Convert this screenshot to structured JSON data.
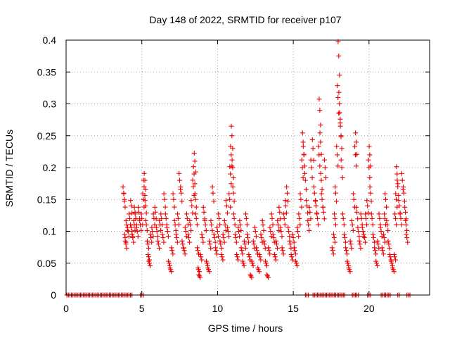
{
  "chart_data": {
    "type": "scatter",
    "title": "Day 148 of 2022, SRMTID for receiver p107",
    "xlabel": "GPS time / hours",
    "ylabel": "SRMTID / TECUs",
    "xlim": [
      0,
      24
    ],
    "ylim": [
      0,
      0.4
    ],
    "x_ticks": [
      0,
      5,
      10,
      15,
      20
    ],
    "y_ticks": [
      0,
      0.05,
      0.1,
      0.15,
      0.2,
      0.25,
      0.3,
      0.35,
      0.4
    ],
    "x_tick_labels": [
      "0",
      "5",
      "10",
      "15",
      "20"
    ],
    "y_tick_labels": [
      "0",
      "0.05",
      "0.1",
      "0.15",
      "0.2",
      "0.25",
      "0.3",
      "0.35",
      "0.4"
    ],
    "grid": true,
    "marker": "+",
    "color": "#ee0000",
    "zero_value_ranges": [
      [
        0.05,
        4.4
      ],
      [
        4.9,
        5.1
      ],
      [
        15.8,
        16.0
      ],
      [
        16.3,
        18.4
      ],
      [
        18.9,
        19.3
      ],
      [
        19.9,
        20.1
      ],
      [
        20.8,
        21.4
      ],
      [
        21.9,
        22.0
      ],
      [
        22.5,
        22.7
      ]
    ],
    "series": [
      {
        "name": "SRMTID",
        "values": [
          [
            3.8,
            0.16
          ],
          [
            3.85,
            0.15
          ],
          [
            3.9,
            0.09
          ],
          [
            3.95,
            0.08
          ],
          [
            4.0,
            0.11
          ],
          [
            4.1,
            0.1
          ],
          [
            4.2,
            0.12
          ],
          [
            4.3,
            0.14
          ],
          [
            4.35,
            0.1
          ],
          [
            4.4,
            0.09
          ],
          [
            4.5,
            0.11
          ],
          [
            4.55,
            0.13
          ],
          [
            4.6,
            0.12
          ],
          [
            4.7,
            0.1
          ],
          [
            4.8,
            0.13
          ],
          [
            4.9,
            0.11
          ],
          [
            5.0,
            0.12
          ],
          [
            5.1,
            0.15
          ],
          [
            5.15,
            0.17
          ],
          [
            5.2,
            0.18
          ],
          [
            5.25,
            0.14
          ],
          [
            5.3,
            0.11
          ],
          [
            5.4,
            0.08
          ],
          [
            5.45,
            0.06
          ],
          [
            5.5,
            0.05
          ],
          [
            5.6,
            0.09
          ],
          [
            5.7,
            0.1
          ],
          [
            5.8,
            0.12
          ],
          [
            5.9,
            0.13
          ],
          [
            6.0,
            0.1
          ],
          [
            6.1,
            0.08
          ],
          [
            6.2,
            0.11
          ],
          [
            6.3,
            0.12
          ],
          [
            6.4,
            0.09
          ],
          [
            6.5,
            0.15
          ],
          [
            6.6,
            0.12
          ],
          [
            6.7,
            0.1
          ],
          [
            6.8,
            0.05
          ],
          [
            6.9,
            0.04
          ],
          [
            7.0,
            0.07
          ],
          [
            7.1,
            0.15
          ],
          [
            7.2,
            0.11
          ],
          [
            7.3,
            0.09
          ],
          [
            7.4,
            0.12
          ],
          [
            7.5,
            0.18
          ],
          [
            7.6,
            0.16
          ],
          [
            7.7,
            0.08
          ],
          [
            7.8,
            0.07
          ],
          [
            7.9,
            0.1
          ],
          [
            8.0,
            0.12
          ],
          [
            8.1,
            0.09
          ],
          [
            8.2,
            0.11
          ],
          [
            8.3,
            0.14
          ],
          [
            8.4,
            0.17
          ],
          [
            8.45,
            0.19
          ],
          [
            8.5,
            0.21
          ],
          [
            8.55,
            0.15
          ],
          [
            8.6,
            0.12
          ],
          [
            8.7,
            0.07
          ],
          [
            8.75,
            0.04
          ],
          [
            8.8,
            0.03
          ],
          [
            8.9,
            0.06
          ],
          [
            9.0,
            0.09
          ],
          [
            9.1,
            0.13
          ],
          [
            9.2,
            0.11
          ],
          [
            9.3,
            0.05
          ],
          [
            9.4,
            0.04
          ],
          [
            9.5,
            0.08
          ],
          [
            9.6,
            0.11
          ],
          [
            9.7,
            0.16
          ],
          [
            9.8,
            0.09
          ],
          [
            9.9,
            0.07
          ],
          [
            10.0,
            0.1
          ],
          [
            10.1,
            0.12
          ],
          [
            10.2,
            0.08
          ],
          [
            10.3,
            0.06
          ],
          [
            10.4,
            0.09
          ],
          [
            10.5,
            0.11
          ],
          [
            10.6,
            0.14
          ],
          [
            10.7,
            0.1
          ],
          [
            10.8,
            0.15
          ],
          [
            10.85,
            0.19
          ],
          [
            10.9,
            0.22
          ],
          [
            10.95,
            0.25
          ],
          [
            11.0,
            0.2
          ],
          [
            11.05,
            0.16
          ],
          [
            11.1,
            0.12
          ],
          [
            11.2,
            0.09
          ],
          [
            11.3,
            0.06
          ],
          [
            11.4,
            0.1
          ],
          [
            11.5,
            0.11
          ],
          [
            11.6,
            0.07
          ],
          [
            11.7,
            0.05
          ],
          [
            11.8,
            0.08
          ],
          [
            11.9,
            0.12
          ],
          [
            12.0,
            0.09
          ],
          [
            12.1,
            0.06
          ],
          [
            12.2,
            0.03
          ],
          [
            12.3,
            0.05
          ],
          [
            12.4,
            0.08
          ],
          [
            12.5,
            0.1
          ],
          [
            12.6,
            0.07
          ],
          [
            12.7,
            0.04
          ],
          [
            12.8,
            0.06
          ],
          [
            12.9,
            0.09
          ],
          [
            13.0,
            0.11
          ],
          [
            13.1,
            0.08
          ],
          [
            13.2,
            0.05
          ],
          [
            13.3,
            0.03
          ],
          [
            13.4,
            0.07
          ],
          [
            13.5,
            0.1
          ],
          [
            13.6,
            0.12
          ],
          [
            13.7,
            0.09
          ],
          [
            13.8,
            0.06
          ],
          [
            13.9,
            0.08
          ],
          [
            14.0,
            0.11
          ],
          [
            14.1,
            0.13
          ],
          [
            14.2,
            0.1
          ],
          [
            14.3,
            0.07
          ],
          [
            14.4,
            0.12
          ],
          [
            14.5,
            0.14
          ],
          [
            14.6,
            0.16
          ],
          [
            14.7,
            0.1
          ],
          [
            14.8,
            0.08
          ],
          [
            14.9,
            0.06
          ],
          [
            15.0,
            0.09
          ],
          [
            15.1,
            0.07
          ],
          [
            15.2,
            0.05
          ],
          [
            15.3,
            0.1
          ],
          [
            15.4,
            0.12
          ],
          [
            15.5,
            0.15
          ],
          [
            15.6,
            0.2
          ],
          [
            15.65,
            0.24
          ],
          [
            15.7,
            0.22
          ],
          [
            15.8,
            0.18
          ],
          [
            15.9,
            0.14
          ],
          [
            16.0,
            0.11
          ],
          [
            16.1,
            0.13
          ],
          [
            16.2,
            0.2
          ],
          [
            16.3,
            0.23
          ],
          [
            16.4,
            0.16
          ],
          [
            16.5,
            0.14
          ],
          [
            16.6,
            0.12
          ],
          [
            16.7,
            0.22
          ],
          [
            16.75,
            0.29
          ],
          [
            16.8,
            0.24
          ],
          [
            16.85,
            0.18
          ],
          [
            16.9,
            0.15
          ],
          [
            17.0,
            0.13
          ],
          [
            17.1,
            0.2
          ],
          [
            17.6,
            0.07
          ],
          [
            17.7,
            0.09
          ],
          [
            17.75,
            0.12
          ],
          [
            17.8,
            0.16
          ],
          [
            17.9,
            0.22
          ],
          [
            17.95,
            0.31
          ],
          [
            18.0,
            0.375
          ],
          [
            18.05,
            0.3
          ],
          [
            18.1,
            0.27
          ],
          [
            18.15,
            0.25
          ],
          [
            18.2,
            0.2
          ],
          [
            18.3,
            0.12
          ],
          [
            18.4,
            0.09
          ],
          [
            18.5,
            0.07
          ],
          [
            18.6,
            0.05
          ],
          [
            18.7,
            0.04
          ],
          [
            18.8,
            0.08
          ],
          [
            18.9,
            0.11
          ],
          [
            19.0,
            0.15
          ],
          [
            19.1,
            0.22
          ],
          [
            19.15,
            0.24
          ],
          [
            19.2,
            0.13
          ],
          [
            19.3,
            0.1
          ],
          [
            19.4,
            0.08
          ],
          [
            19.5,
            0.12
          ],
          [
            19.6,
            0.1
          ],
          [
            19.7,
            0.09
          ],
          [
            19.8,
            0.12
          ],
          [
            19.9,
            0.14
          ],
          [
            20.0,
            0.2
          ],
          [
            20.05,
            0.22
          ],
          [
            20.1,
            0.16
          ],
          [
            20.2,
            0.12
          ],
          [
            20.3,
            0.09
          ],
          [
            20.4,
            0.07
          ],
          [
            20.5,
            0.05
          ],
          [
            20.6,
            0.08
          ],
          [
            20.7,
            0.12
          ],
          [
            20.8,
            0.1
          ],
          [
            20.9,
            0.07
          ],
          [
            21.0,
            0.09
          ],
          [
            21.05,
            0.12
          ],
          [
            21.1,
            0.15
          ],
          [
            21.2,
            0.11
          ],
          [
            21.3,
            0.08
          ],
          [
            21.4,
            0.06
          ],
          [
            21.5,
            0.05
          ],
          [
            21.6,
            0.04
          ],
          [
            21.7,
            0.06
          ],
          [
            21.75,
            0.12
          ],
          [
            21.8,
            0.15
          ],
          [
            21.85,
            0.19
          ],
          [
            21.9,
            0.17
          ],
          [
            22.0,
            0.14
          ],
          [
            22.1,
            0.12
          ],
          [
            22.2,
            0.18
          ],
          [
            22.3,
            0.16
          ],
          [
            22.4,
            0.13
          ],
          [
            22.45,
            0.11
          ],
          [
            22.5,
            0.09
          ]
        ]
      }
    ]
  }
}
